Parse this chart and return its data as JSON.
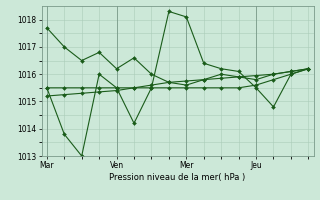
{
  "bg_color": "#cce8d8",
  "grid_color": "#aaccb8",
  "line_color": "#1a5c1a",
  "xlabel": "Pression niveau de la mer( hPa )",
  "ylim": [
    1013.0,
    1018.5
  ],
  "yticks": [
    1013,
    1014,
    1015,
    1016,
    1017,
    1018
  ],
  "xtick_labels": [
    "Mar",
    "Ven",
    "Mer",
    "Jeu"
  ],
  "xtick_positions": [
    0,
    4,
    8,
    12
  ],
  "vline_positions": [
    0,
    4,
    8,
    12
  ],
  "x_positions": [
    0,
    1,
    2,
    3,
    4,
    5,
    6,
    7,
    8,
    9,
    10,
    11,
    12,
    13,
    14,
    15
  ],
  "s1": [
    1017.7,
    1017.0,
    1016.5,
    1016.8,
    1016.2,
    1016.6,
    1016.0,
    1015.7,
    1015.6,
    1015.8,
    1016.0,
    1015.9,
    1015.8,
    1016.0,
    1016.1,
    1016.2
  ],
  "s2": [
    1015.5,
    1015.5,
    1015.5,
    1015.5,
    1015.5,
    1015.5,
    1015.5,
    1015.5,
    1015.5,
    1015.5,
    1015.5,
    1015.5,
    1015.6,
    1015.8,
    1016.0,
    1016.2
  ],
  "s3": [
    1015.5,
    1013.8,
    1013.0,
    1016.0,
    1015.5,
    1014.2,
    1015.5,
    1018.3,
    1018.1,
    1016.4,
    1016.2,
    1016.1,
    1015.5,
    1014.8,
    1016.0,
    1016.2
  ],
  "s4": [
    1015.2,
    1015.25,
    1015.3,
    1015.35,
    1015.4,
    1015.5,
    1015.6,
    1015.7,
    1015.75,
    1015.8,
    1015.85,
    1015.9,
    1015.95,
    1016.0,
    1016.1,
    1016.2
  ]
}
